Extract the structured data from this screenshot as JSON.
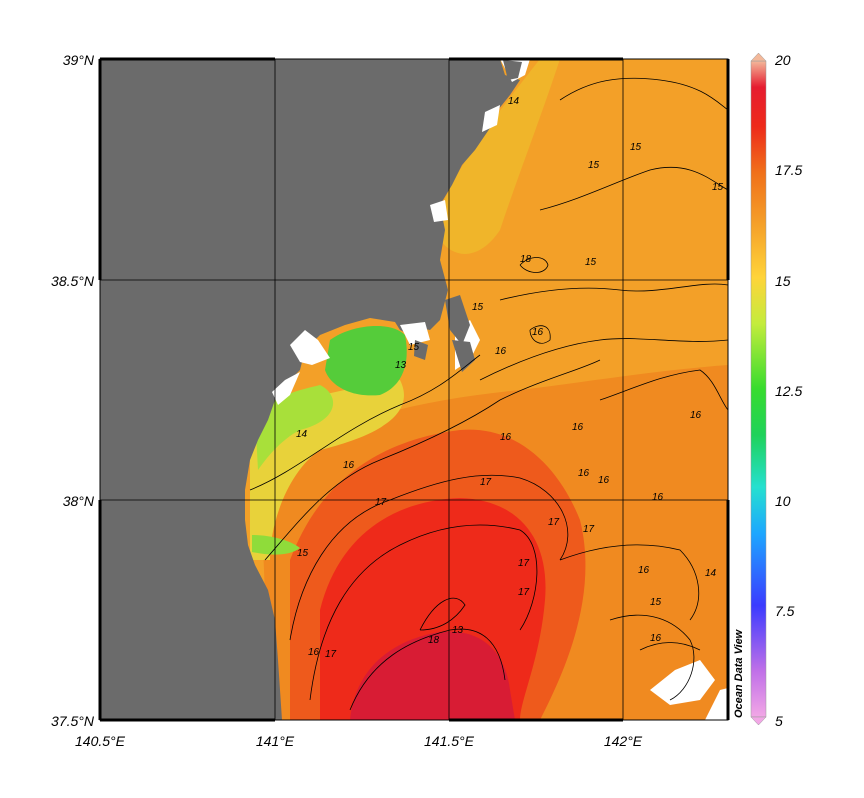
{
  "map": {
    "lon_range": [
      140.5,
      142.3
    ],
    "lat_range": [
      37.5,
      39.0
    ],
    "grid_lines": true,
    "lon_ticks": [
      {
        "value": 140.5,
        "label": "140.5°E"
      },
      {
        "value": 141.0,
        "label": "141°E"
      },
      {
        "value": 141.5,
        "label": "141.5°E"
      },
      {
        "value": 142.0,
        "label": "142°E"
      }
    ],
    "lat_ticks": [
      {
        "value": 39.0,
        "label": "39°N"
      },
      {
        "value": 38.5,
        "label": "38.5°N"
      },
      {
        "value": 38.0,
        "label": "38°N"
      },
      {
        "value": 37.5,
        "label": "37.5°N"
      }
    ],
    "land_color": "#6b6b6b",
    "missing_color": "#ffffff",
    "contour_labels": [
      "14",
      "15",
      "15",
      "15",
      "15",
      "15",
      "15",
      "16",
      "16",
      "16",
      "16",
      "16",
      "16",
      "16",
      "16",
      "16",
      "16",
      "16",
      "16",
      "17",
      "17",
      "17",
      "17",
      "17",
      "17",
      "17",
      "18",
      "18",
      "13",
      "13",
      "14",
      "15",
      "15",
      "14"
    ]
  },
  "colorbar": {
    "min": 5,
    "max": 20,
    "ticks": [
      {
        "value": 20,
        "label": "20"
      },
      {
        "value": 17.5,
        "label": "17.5"
      },
      {
        "value": 15,
        "label": "15"
      },
      {
        "value": 12.5,
        "label": "12.5"
      },
      {
        "value": 10,
        "label": "10"
      },
      {
        "value": 7.5,
        "label": "7.5"
      },
      {
        "value": 5,
        "label": "5"
      }
    ],
    "colors": [
      "#f2a7e6",
      "#b35be6",
      "#3b3bff",
      "#1da7ff",
      "#25e0d0",
      "#1fd25a",
      "#4ee036",
      "#c4ec3c",
      "#ffd43a",
      "#f5a12a",
      "#f07a1c",
      "#ee2a1a",
      "#e61c30",
      "#f3b89a"
    ]
  },
  "brand": "Ocean Data View"
}
